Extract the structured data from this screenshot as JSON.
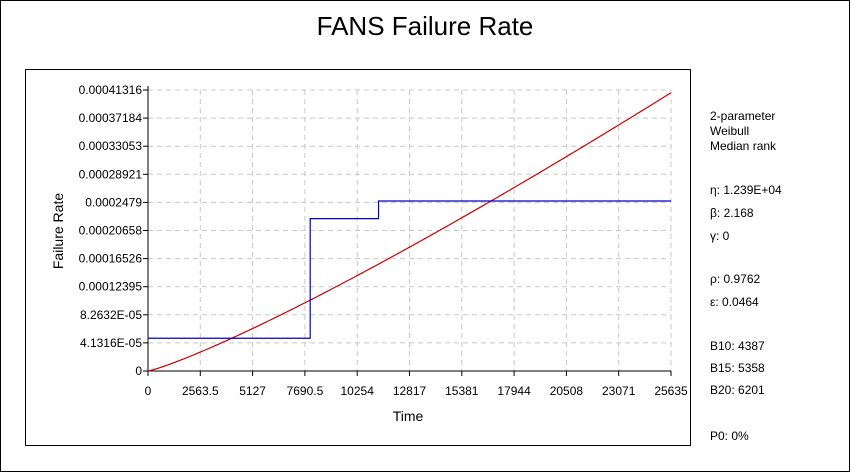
{
  "chart_data": {
    "type": "line",
    "title": "FANS Failure Rate",
    "xlabel": "Time",
    "ylabel": "Failure Rate",
    "xlim": [
      0,
      25635
    ],
    "ylim": [
      0,
      0.00041316
    ],
    "x_ticks": [
      "0",
      "2563.5",
      "5127",
      "7690.5",
      "10254",
      "12817",
      "15381",
      "17944",
      "20508",
      "23071",
      "25635"
    ],
    "y_ticks": [
      "0",
      "4.1316E-05",
      "8.2632E-05",
      "0.00012395",
      "0.00016526",
      "0.00020658",
      "0.0002479",
      "0.00028921",
      "0.00033053",
      "0.00037184",
      "0.00041316"
    ],
    "grid": true,
    "series": [
      {
        "name": "",
        "color": "#cc0000",
        "weibull_eta": 12390,
        "weibull_beta": 2.168
      },
      {
        "name": "",
        "color": "#0000cc",
        "step": true,
        "points": [
          [
            0,
            4.82e-05
          ],
          [
            7950,
            4.82e-05
          ],
          [
            7950,
            0.000224
          ],
          [
            11300,
            0.000224
          ],
          [
            11300,
            0.00025
          ],
          [
            25635,
            0.00025
          ]
        ]
      }
    ]
  },
  "side_panel": {
    "model_line1": "2-parameter",
    "model_line2": "Weibull",
    "model_line3": "Median rank",
    "eta": "η: 1.239E+04",
    "beta": "β: 2.168",
    "gamma": "γ: 0",
    "rho": "ρ: 0.9762",
    "epsilon": "ε: 0.0464",
    "b10": "B10: 4387",
    "b15": "B15: 5358",
    "b20": "B20: 6201",
    "p0": "P0: 0%"
  }
}
